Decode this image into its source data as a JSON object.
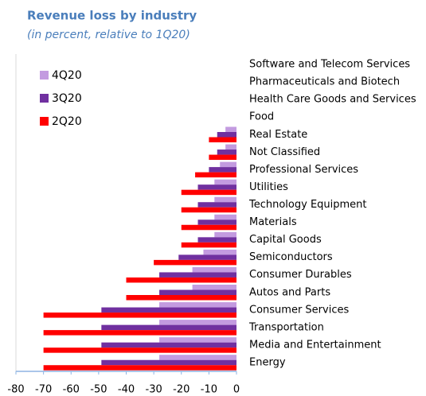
{
  "chart_data": {
    "type": "barh",
    "title": "Revenue loss by industry",
    "subtitle": "(in percent, relative to 1Q20)",
    "categories": [
      "Software and Telecom Services",
      "Pharmaceuticals and Biotech",
      "Health Care Goods and Services",
      "Food",
      "Real Estate",
      "Not Classified",
      "Professional Services",
      "Utilities",
      "Technology Equipment",
      "Materials",
      "Capital Goods",
      "Semiconductors",
      "Consumer Durables",
      "Autos and Parts",
      "Consumer Services",
      "Transportation",
      "Media and Entertainment",
      "Energy"
    ],
    "series": [
      {
        "name": "4Q20",
        "color": "#c39be0",
        "values": [
          0,
          0,
          0,
          0,
          -4,
          -4,
          -6,
          -8,
          -8,
          -8,
          -8,
          -12,
          -16,
          -16,
          -28,
          -28,
          -28,
          -28
        ]
      },
      {
        "name": "3Q20",
        "color": "#7030a0",
        "values": [
          0,
          0,
          0,
          0,
          -7,
          -7,
          -10,
          -14,
          -14,
          -14,
          -14,
          -21,
          -28,
          -28,
          -49,
          -49,
          -49,
          -49
        ]
      },
      {
        "name": "2Q20",
        "color": "#ff0000",
        "values": [
          0,
          0,
          0,
          0,
          -10,
          -10,
          -15,
          -20,
          -20,
          -20,
          -20,
          -30,
          -40,
          -40,
          -70,
          -70,
          -70,
          -70
        ]
      }
    ],
    "xlim": [
      -80,
      0
    ],
    "xticks": [
      -80,
      -70,
      -60,
      -50,
      -40,
      -30,
      -20,
      -10,
      0
    ],
    "legend": "upper left"
  }
}
